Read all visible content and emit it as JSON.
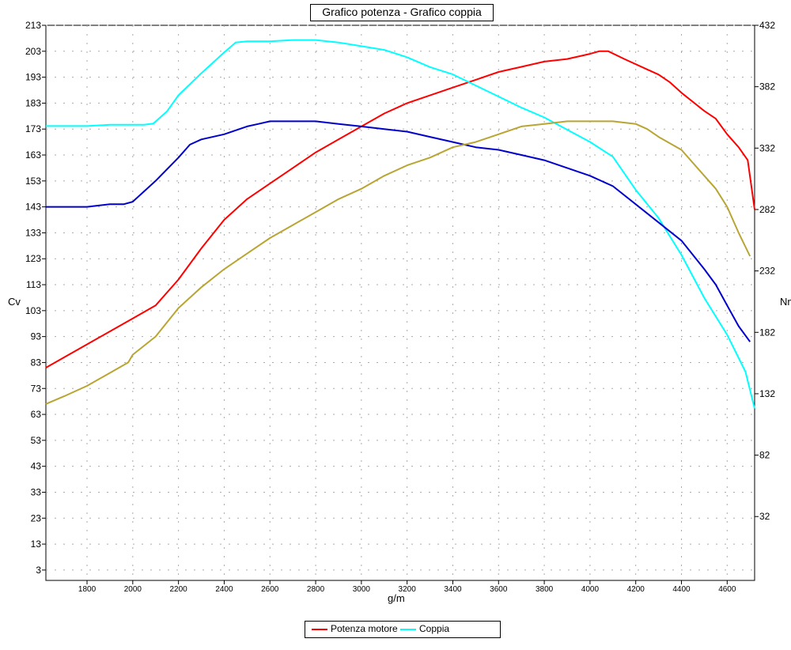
{
  "chart_data": {
    "type": "line",
    "title": "Grafico potenza - Grafico coppia",
    "xlabel": "g/m",
    "ylabel_left": "Cv",
    "ylabel_right": "Nm",
    "xlim": [
      1620,
      4720
    ],
    "ylim_left": [
      -1,
      213
    ],
    "ylim_right": [
      -20,
      432
    ],
    "x_ticks": [
      1800,
      2000,
      2200,
      2400,
      2600,
      2800,
      3000,
      3200,
      3400,
      3600,
      3800,
      4000,
      4200,
      4400,
      4600
    ],
    "y_ticks_left": [
      213,
      203,
      193,
      183,
      173,
      163,
      153,
      143,
      133,
      123,
      113,
      103,
      93,
      83,
      73,
      63,
      53,
      43,
      33,
      23,
      13,
      3
    ],
    "y_ticks_right": [
      432,
      382,
      332,
      282,
      232,
      182,
      132,
      82,
      32
    ],
    "grid": true,
    "legend_position": "bottom",
    "series": [
      {
        "name": "Potenza motore",
        "axis": "left",
        "color": "#ff0000",
        "x": [
          1620,
          1700,
          1800,
          1900,
          2000,
          2100,
          2200,
          2300,
          2400,
          2500,
          2600,
          2700,
          2800,
          2900,
          3000,
          3100,
          3200,
          3300,
          3400,
          3500,
          3600,
          3700,
          3800,
          3900,
          4000,
          4040,
          4080,
          4150,
          4250,
          4300,
          4350,
          4400,
          4500,
          4550,
          4600,
          4650,
          4690,
          4720
        ],
        "y": [
          81,
          85,
          90,
          95,
          100,
          105,
          115,
          127,
          138,
          146,
          152,
          158,
          164,
          169,
          174,
          179,
          183,
          186,
          189,
          192,
          195,
          197,
          199,
          200,
          202,
          203,
          203,
          200,
          196,
          194,
          191,
          187,
          180,
          177,
          171,
          166,
          161,
          142
        ]
      },
      {
        "name": "Coppia",
        "axis": "right",
        "color": "#00ffff",
        "x": [
          1620,
          1700,
          1800,
          1900,
          2000,
          2050,
          2090,
          2150,
          2200,
          2300,
          2400,
          2450,
          2500,
          2600,
          2700,
          2800,
          2900,
          3000,
          3100,
          3200,
          3300,
          3400,
          3500,
          3600,
          3700,
          3800,
          3900,
          4000,
          4100,
          4200,
          4300,
          4400,
          4500,
          4600,
          4680,
          4720
        ],
        "y": [
          350,
          350,
          350,
          351,
          351,
          351,
          352,
          362,
          375,
          393,
          410,
          418,
          419,
          419,
          420,
          420,
          418,
          415,
          412,
          406,
          398,
          392,
          383,
          374,
          365,
          357,
          347,
          337,
          325,
          298,
          275,
          245,
          210,
          180,
          150,
          120
        ]
      },
      {
        "axis": "left",
        "color": "#0000cc",
        "x": [
          1620,
          1700,
          1800,
          1900,
          1960,
          2000,
          2100,
          2200,
          2250,
          2300,
          2400,
          2500,
          2550,
          2600,
          2700,
          2800,
          2900,
          3000,
          3100,
          3200,
          3300,
          3400,
          3500,
          3600,
          3700,
          3800,
          3900,
          4000,
          4100,
          4200,
          4300,
          4400,
          4500,
          4550,
          4600,
          4650,
          4700
        ],
        "y": [
          143,
          143,
          143,
          144,
          144,
          145,
          153,
          162,
          167,
          169,
          171,
          174,
          175,
          176,
          176,
          176,
          175,
          174,
          173,
          172,
          170,
          168,
          166,
          165,
          163,
          161,
          158,
          155,
          151,
          144,
          137,
          130,
          119,
          113,
          105,
          97,
          91
        ]
      },
      {
        "axis": "left",
        "color": "#b8a532",
        "x": [
          1620,
          1700,
          1800,
          1900,
          1980,
          2000,
          2100,
          2200,
          2300,
          2400,
          2500,
          2600,
          2700,
          2800,
          2900,
          3000,
          3100,
          3200,
          3300,
          3400,
          3500,
          3600,
          3700,
          3800,
          3900,
          3950,
          4000,
          4100,
          4200,
          4250,
          4300,
          4400,
          4500,
          4550,
          4600,
          4650,
          4700
        ],
        "y": [
          67,
          70,
          74,
          79,
          83,
          86,
          93,
          104,
          112,
          119,
          125,
          131,
          136,
          141,
          146,
          150,
          155,
          159,
          162,
          166,
          168,
          171,
          174,
          175,
          176,
          176,
          176,
          176,
          175,
          173,
          170,
          165,
          155,
          150,
          143,
          133,
          124
        ]
      }
    ],
    "legend": [
      "Potenza motore",
      "Coppia"
    ]
  }
}
